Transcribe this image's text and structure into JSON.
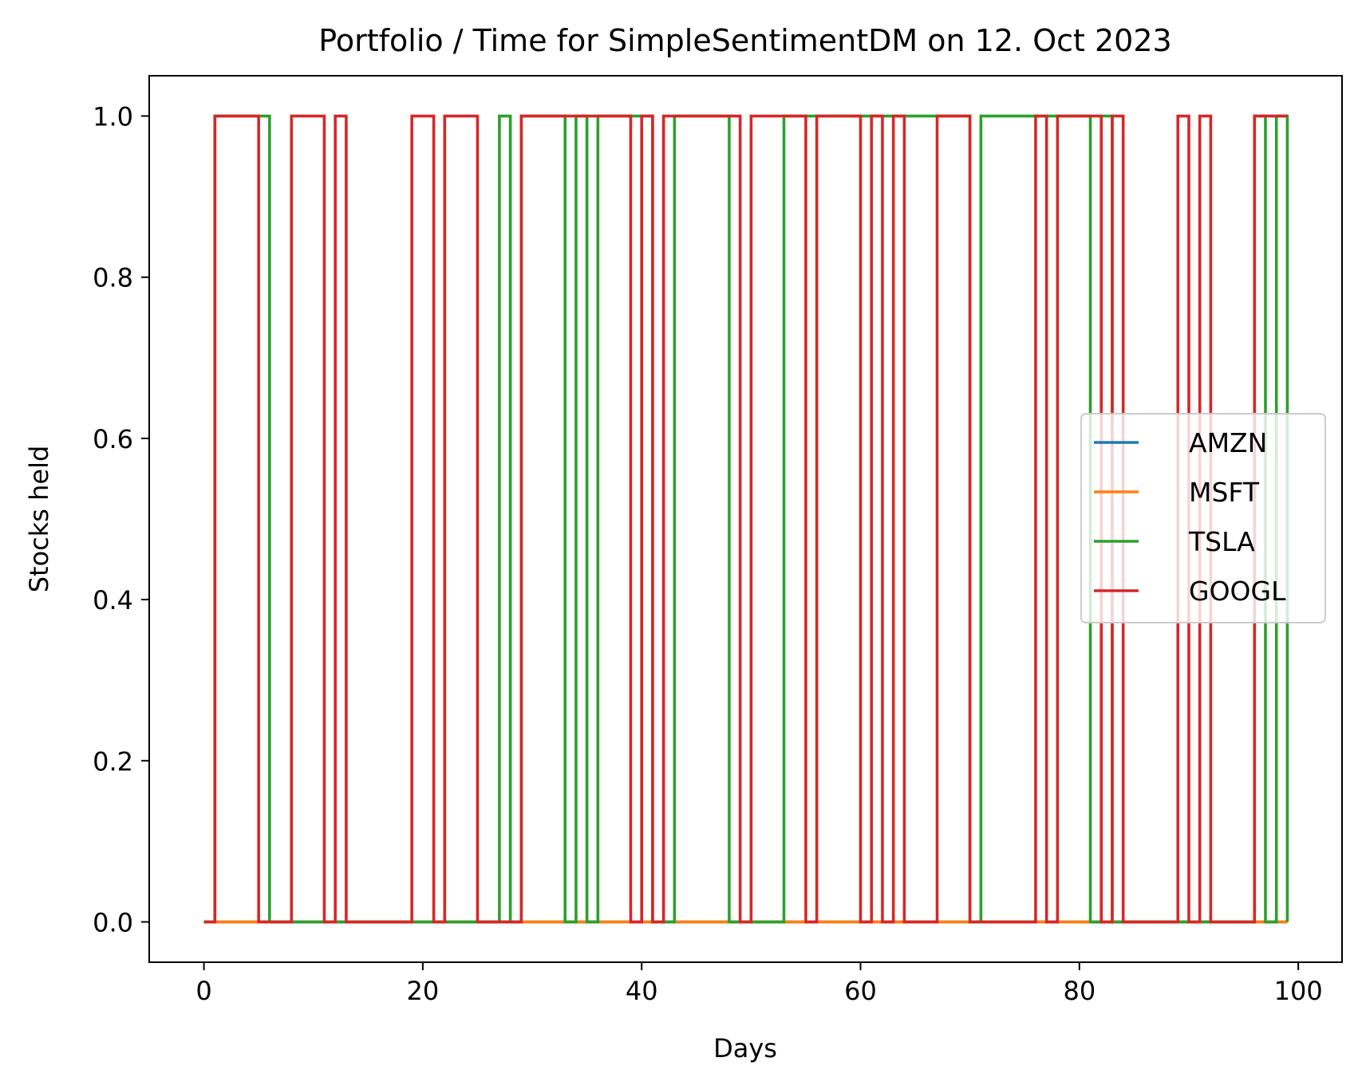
{
  "chart_data": {
    "type": "line",
    "drawstyle": "steps-post",
    "title": "Portfolio / Time for SimpleSentimentDM on 12. Oct 2023",
    "xlabel": "Days",
    "ylabel": "Stocks held",
    "xlim": [
      -5,
      104
    ],
    "ylim": [
      -0.05,
      1.05
    ],
    "xticks": [
      0,
      20,
      40,
      60,
      80,
      100
    ],
    "xtick_labels": [
      "0",
      "20",
      "40",
      "60",
      "80",
      "100"
    ],
    "yticks": [
      0.0,
      0.2,
      0.4,
      0.6,
      0.8,
      1.0
    ],
    "ytick_labels": [
      "0.0",
      "0.2",
      "0.4",
      "0.6",
      "0.8",
      "1.0"
    ],
    "grid": false,
    "legend_position": "center-right",
    "x": [
      0,
      1,
      2,
      3,
      4,
      5,
      6,
      7,
      8,
      9,
      10,
      11,
      12,
      13,
      14,
      15,
      16,
      17,
      18,
      19,
      20,
      21,
      22,
      23,
      24,
      25,
      26,
      27,
      28,
      29,
      30,
      31,
      32,
      33,
      34,
      35,
      36,
      37,
      38,
      39,
      40,
      41,
      42,
      43,
      44,
      45,
      46,
      47,
      48,
      49,
      50,
      51,
      52,
      53,
      54,
      55,
      56,
      57,
      58,
      59,
      60,
      61,
      62,
      63,
      64,
      65,
      66,
      67,
      68,
      69,
      70,
      71,
      72,
      73,
      74,
      75,
      76,
      77,
      78,
      79,
      80,
      81,
      82,
      83,
      84,
      85,
      86,
      87,
      88,
      89,
      90,
      91,
      92,
      93,
      94,
      95,
      96,
      97,
      98,
      99
    ],
    "series": [
      {
        "name": "AMZN",
        "color": "#1f77b4",
        "values": [
          0,
          0,
          0,
          0,
          0,
          0,
          0,
          0,
          0,
          0,
          0,
          0,
          0,
          0,
          0,
          0,
          0,
          0,
          0,
          0,
          0,
          0,
          0,
          0,
          0,
          0,
          0,
          0,
          0,
          0,
          0,
          0,
          0,
          0,
          0,
          0,
          0,
          0,
          0,
          0,
          0,
          0,
          0,
          0,
          0,
          0,
          0,
          0,
          0,
          0,
          0,
          0,
          0,
          0,
          0,
          0,
          0,
          0,
          0,
          0,
          0,
          0,
          0,
          0,
          0,
          0,
          0,
          0,
          0,
          0,
          0,
          0,
          0,
          0,
          0,
          0,
          0,
          0,
          0,
          0,
          0,
          0,
          0,
          0,
          0,
          0,
          0,
          0,
          0,
          0,
          0,
          0,
          0,
          0,
          0,
          0,
          0,
          0,
          0,
          0
        ]
      },
      {
        "name": "MSFT",
        "color": "#ff7f0e",
        "values": [
          0,
          0,
          0,
          0,
          0,
          0,
          0,
          0,
          0,
          0,
          0,
          0,
          0,
          0,
          0,
          0,
          0,
          0,
          0,
          0,
          0,
          0,
          0,
          0,
          0,
          0,
          0,
          0,
          0,
          0,
          0,
          0,
          0,
          0,
          0,
          0,
          0,
          0,
          0,
          0,
          0,
          0,
          0,
          0,
          0,
          0,
          0,
          0,
          0,
          0,
          0,
          0,
          0,
          0,
          0,
          0,
          0,
          0,
          0,
          0,
          0,
          0,
          0,
          0,
          0,
          0,
          0,
          0,
          0,
          0,
          0,
          0,
          0,
          0,
          0,
          0,
          0,
          0,
          0,
          0,
          0,
          0,
          0,
          0,
          0,
          0,
          0,
          0,
          0,
          0,
          0,
          0,
          0,
          0,
          0,
          0,
          0,
          0,
          0,
          0
        ]
      },
      {
        "name": "TSLA",
        "color": "#2ca02c",
        "values": [
          0,
          1,
          1,
          1,
          1,
          1,
          0,
          0,
          0,
          0,
          0,
          0,
          0,
          0,
          0,
          0,
          0,
          0,
          0,
          0,
          0,
          0,
          0,
          0,
          0,
          0,
          0,
          1,
          0,
          1,
          1,
          1,
          1,
          0,
          1,
          0,
          1,
          1,
          1,
          1,
          1,
          0,
          0,
          1,
          1,
          1,
          1,
          1,
          0,
          0,
          0,
          0,
          0,
          1,
          1,
          1,
          1,
          1,
          1,
          1,
          1,
          1,
          1,
          1,
          1,
          1,
          1,
          1,
          1,
          1,
          0,
          1,
          1,
          1,
          1,
          1,
          1,
          1,
          1,
          1,
          1,
          0,
          1,
          0,
          0,
          0,
          0,
          0,
          0,
          0,
          0,
          0,
          0,
          0,
          0,
          0,
          1,
          0,
          1,
          0
        ]
      },
      {
        "name": "GOOGL",
        "color": "#d62728",
        "values": [
          0,
          1,
          1,
          1,
          1,
          0,
          0,
          0,
          1,
          1,
          1,
          0,
          1,
          0,
          0,
          0,
          0,
          0,
          0,
          1,
          1,
          0,
          1,
          1,
          1,
          0,
          0,
          0,
          0,
          1,
          1,
          1,
          1,
          1,
          1,
          1,
          1,
          1,
          1,
          0,
          1,
          0,
          1,
          1,
          1,
          1,
          1,
          1,
          1,
          0,
          1,
          1,
          1,
          1,
          1,
          0,
          1,
          1,
          1,
          1,
          0,
          1,
          0,
          1,
          0,
          0,
          0,
          1,
          1,
          1,
          0,
          0,
          0,
          0,
          0,
          0,
          1,
          0,
          1,
          1,
          1,
          1,
          0,
          1,
          0,
          0,
          0,
          0,
          0,
          1,
          0,
          1,
          0,
          0,
          0,
          0,
          1,
          1,
          1,
          1
        ]
      }
    ]
  }
}
